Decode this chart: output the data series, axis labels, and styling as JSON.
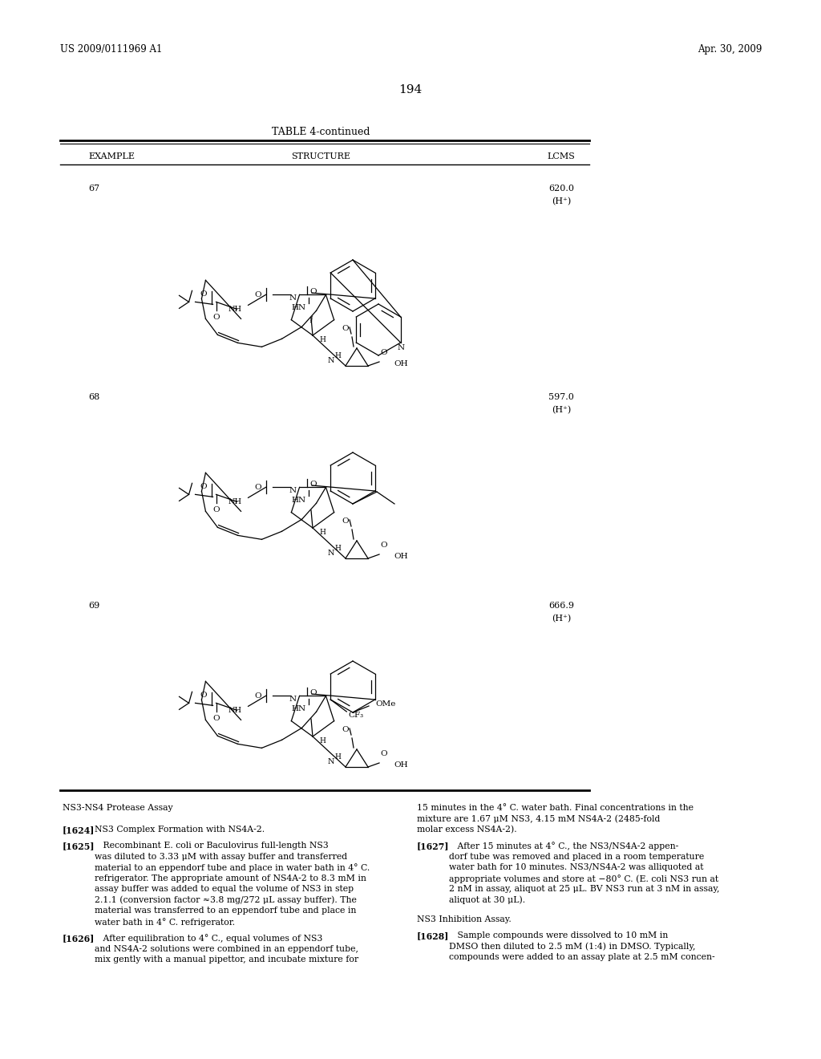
{
  "page_number": "194",
  "patent_number": "US 2009/0111969 A1",
  "patent_date": "Apr. 30, 2009",
  "table_title": "TABLE 4-continued",
  "col_headers": [
    "EXAMPLE",
    "STRUCTURE",
    "LCMS"
  ],
  "examples": [
    {
      "num": "67",
      "lcms1": "620.0",
      "lcms2": "(H⁺)"
    },
    {
      "num": "68",
      "lcms1": "597.0",
      "lcms2": "(H⁺)"
    },
    {
      "num": "69",
      "lcms1": "666.9",
      "lcms2": "(H⁺)"
    }
  ],
  "bg_color": "#ffffff",
  "text_color": "#000000",
  "line_color": "#000000"
}
